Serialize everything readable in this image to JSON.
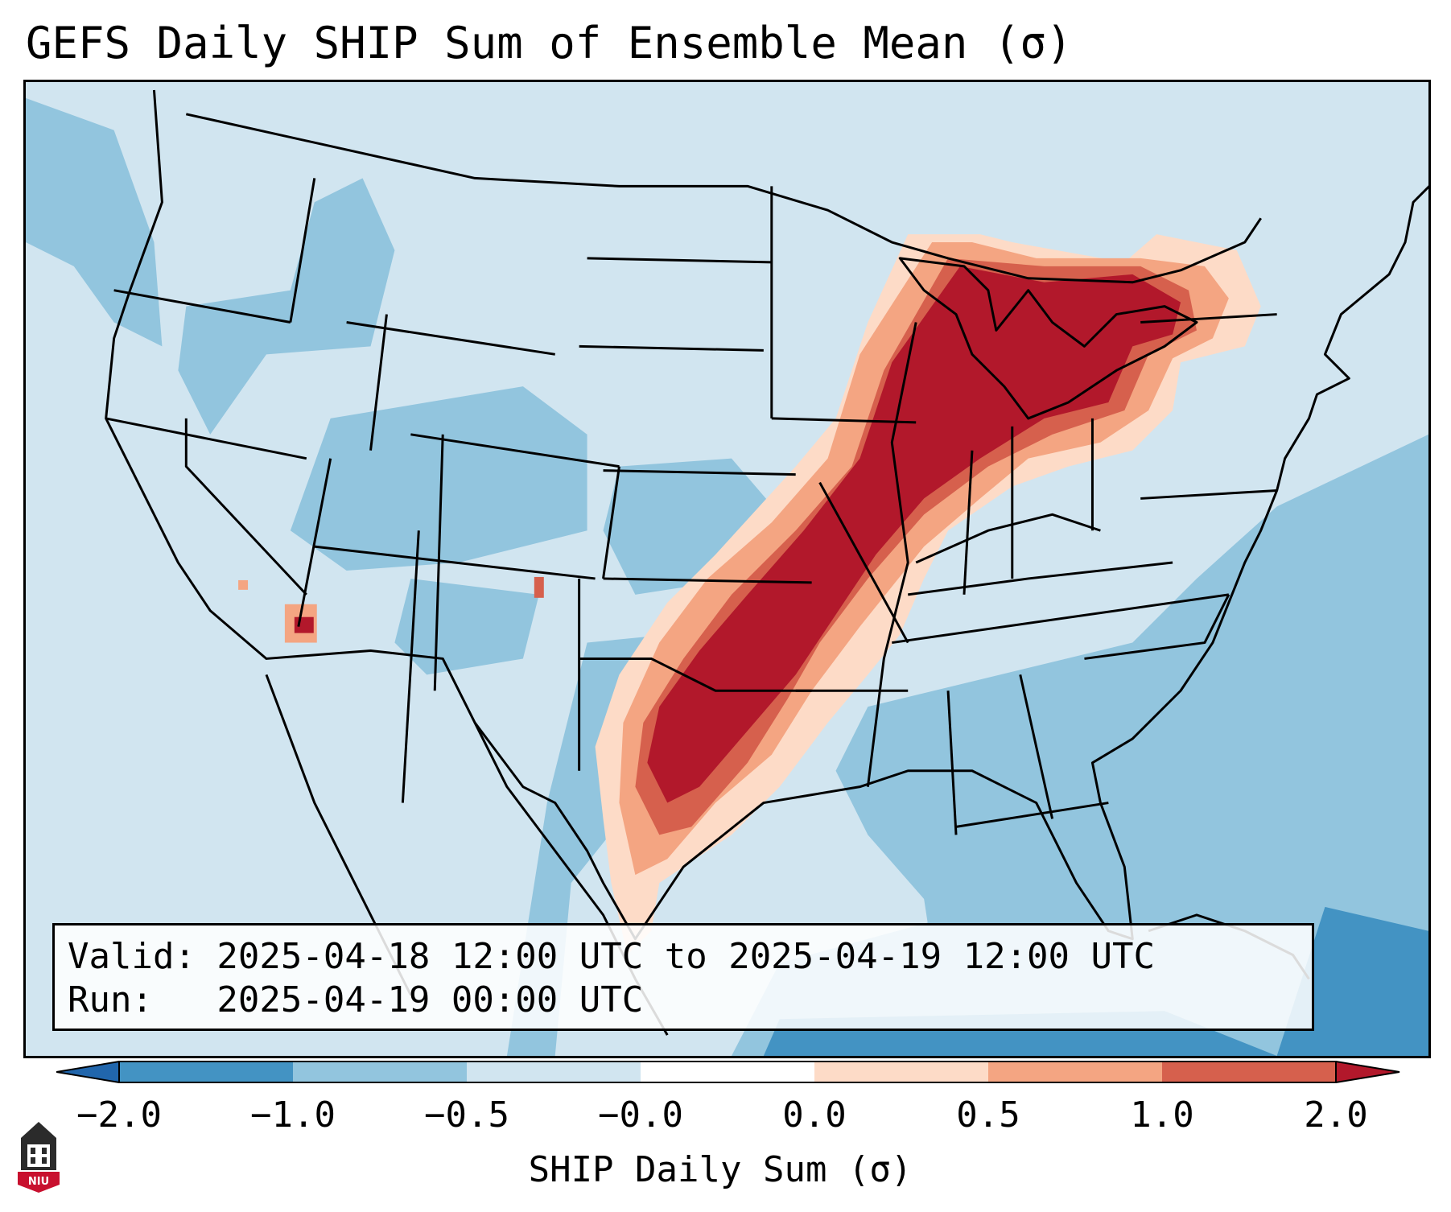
{
  "title": "GEFS Daily SHIP Sum of Ensemble Mean (σ)",
  "info": {
    "valid_line": "Valid: 2025-04-18 12:00 UTC to 2025-04-19 12:00 UTC",
    "run_line": "Run:   2025-04-19 00:00 UTC"
  },
  "colorbar": {
    "label": "SHIP Daily Sum (σ)",
    "ticks": [
      "−2.0",
      "−1.0",
      "−0.5",
      "−0.0",
      "0.0",
      "0.5",
      "1.0",
      "2.0"
    ],
    "bin_colors": [
      "#4393c3",
      "#92c5de",
      "#d1e5f0",
      "#fddbc7",
      "#f4a582",
      "#d6604d",
      "#b2182b"
    ],
    "under_color": "#2166ac",
    "over_color": "#b2182b"
  },
  "map_colors": {
    "background": "#d1e5f0",
    "below_neg_half": "#92c5de",
    "below_neg_one": "#4393c3",
    "above_zero": "#fddbc7",
    "above_half": "#f4a582",
    "above_one": "#d6604d",
    "above_two": "#b2182b",
    "border": "#000000"
  },
  "logo": {
    "text": "NIU",
    "color": "#c8102e"
  }
}
